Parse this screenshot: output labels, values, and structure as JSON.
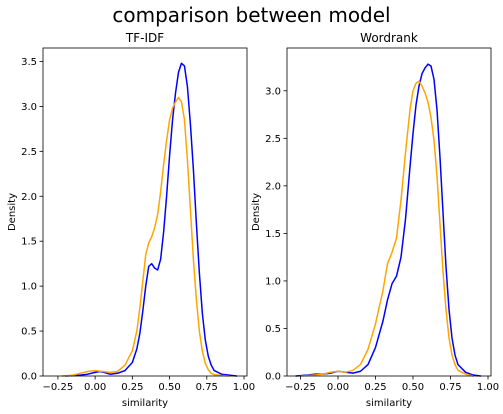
{
  "figure": {
    "suptitle": "comparison between model"
  },
  "colors": {
    "series_a": "#0000ff",
    "series_b": "#ffa500"
  },
  "chart_data": [
    {
      "type": "line",
      "subtype": "kde",
      "title": "TF-IDF",
      "xlabel": "similarity",
      "ylabel": "Density",
      "xlim": [
        -0.35,
        1.02
      ],
      "ylim": [
        0,
        3.65
      ],
      "xticks": [
        -0.25,
        0.0,
        0.25,
        0.5,
        0.75,
        1.0
      ],
      "xtick_labels": [
        "−0.25",
        "0.00",
        "0.25",
        "0.50",
        "0.75",
        "1.00"
      ],
      "yticks": [
        0.0,
        0.5,
        1.0,
        1.5,
        2.0,
        2.5,
        3.0,
        3.5
      ],
      "ytick_labels": [
        "0.0",
        "0.5",
        "1.0",
        "1.5",
        "2.0",
        "2.5",
        "3.0",
        "3.5"
      ],
      "series": [
        {
          "color": "#0000ff",
          "x": [
            -0.2,
            -0.1,
            -0.05,
            0.0,
            0.03,
            0.06,
            0.1,
            0.15,
            0.2,
            0.25,
            0.28,
            0.3,
            0.32,
            0.34,
            0.36,
            0.38,
            0.4,
            0.42,
            0.44,
            0.46,
            0.48,
            0.5,
            0.52,
            0.54,
            0.56,
            0.58,
            0.6,
            0.62,
            0.64,
            0.66,
            0.68,
            0.7,
            0.72,
            0.74,
            0.76,
            0.78,
            0.8,
            0.85,
            0.9,
            0.95
          ],
          "y": [
            0.0,
            0.01,
            0.02,
            0.04,
            0.05,
            0.04,
            0.02,
            0.03,
            0.06,
            0.15,
            0.3,
            0.47,
            0.72,
            1.0,
            1.22,
            1.25,
            1.2,
            1.18,
            1.3,
            1.6,
            2.0,
            2.45,
            2.85,
            3.15,
            3.38,
            3.48,
            3.45,
            3.22,
            2.8,
            2.3,
            1.7,
            1.15,
            0.7,
            0.4,
            0.22,
            0.12,
            0.06,
            0.02,
            0.01,
            0.0
          ]
        },
        {
          "color": "#ffa500",
          "x": [
            -0.22,
            -0.15,
            -0.1,
            -0.05,
            0.0,
            0.05,
            0.1,
            0.15,
            0.2,
            0.25,
            0.28,
            0.3,
            0.32,
            0.34,
            0.36,
            0.38,
            0.4,
            0.42,
            0.44,
            0.46,
            0.48,
            0.5,
            0.52,
            0.54,
            0.56,
            0.58,
            0.6,
            0.62,
            0.64,
            0.66,
            0.68,
            0.7,
            0.72,
            0.74,
            0.76,
            0.78,
            0.8,
            0.85,
            0.9
          ],
          "y": [
            0.0,
            0.01,
            0.03,
            0.05,
            0.06,
            0.05,
            0.04,
            0.05,
            0.12,
            0.28,
            0.5,
            0.75,
            1.05,
            1.35,
            1.48,
            1.55,
            1.65,
            1.8,
            2.05,
            2.35,
            2.62,
            2.85,
            2.98,
            3.05,
            3.1,
            3.05,
            2.85,
            2.4,
            1.85,
            1.3,
            0.85,
            0.5,
            0.28,
            0.14,
            0.07,
            0.03,
            0.015,
            0.005,
            0.0
          ]
        }
      ]
    },
    {
      "type": "line",
      "subtype": "kde",
      "title": "Wordrank",
      "xlabel": "similarity",
      "ylabel": "Density",
      "xlim": [
        -0.34,
        1.02
      ],
      "ylim": [
        0,
        3.45
      ],
      "xticks": [
        -0.25,
        0.0,
        0.25,
        0.5,
        0.75,
        1.0
      ],
      "xtick_labels": [
        "−0.25",
        "0.00",
        "0.25",
        "0.50",
        "0.75",
        "1.00"
      ],
      "yticks": [
        0.0,
        0.5,
        1.0,
        1.5,
        2.0,
        2.5,
        3.0
      ],
      "ytick_labels": [
        "0.0",
        "0.5",
        "1.0",
        "1.5",
        "2.0",
        "2.5",
        "3.0"
      ],
      "series": [
        {
          "color": "#0000ff",
          "x": [
            -0.28,
            -0.2,
            -0.15,
            -0.1,
            -0.05,
            0.0,
            0.05,
            0.1,
            0.15,
            0.2,
            0.25,
            0.3,
            0.33,
            0.36,
            0.39,
            0.42,
            0.45,
            0.48,
            0.5,
            0.52,
            0.54,
            0.56,
            0.58,
            0.6,
            0.62,
            0.64,
            0.66,
            0.68,
            0.7,
            0.72,
            0.74,
            0.76,
            0.78,
            0.8,
            0.85,
            0.9,
            0.95
          ],
          "y": [
            0.0,
            0.01,
            0.02,
            0.02,
            0.03,
            0.05,
            0.04,
            0.03,
            0.05,
            0.12,
            0.3,
            0.58,
            0.8,
            0.97,
            1.05,
            1.25,
            1.65,
            2.2,
            2.55,
            2.85,
            3.05,
            3.18,
            3.24,
            3.28,
            3.26,
            3.12,
            2.8,
            2.3,
            1.72,
            1.15,
            0.7,
            0.4,
            0.22,
            0.12,
            0.04,
            0.01,
            0.0
          ]
        },
        {
          "color": "#ffa500",
          "x": [
            -0.25,
            -0.15,
            -0.1,
            -0.05,
            0.0,
            0.05,
            0.1,
            0.15,
            0.2,
            0.25,
            0.3,
            0.33,
            0.36,
            0.39,
            0.42,
            0.45,
            0.48,
            0.5,
            0.52,
            0.54,
            0.56,
            0.58,
            0.6,
            0.62,
            0.64,
            0.66,
            0.68,
            0.7,
            0.72,
            0.74,
            0.76,
            0.78,
            0.8,
            0.85,
            0.9
          ],
          "y": [
            0.0,
            0.01,
            0.02,
            0.04,
            0.05,
            0.04,
            0.06,
            0.12,
            0.28,
            0.55,
            0.9,
            1.18,
            1.3,
            1.45,
            1.85,
            2.35,
            2.8,
            3.0,
            3.08,
            3.1,
            3.05,
            2.98,
            2.88,
            2.72,
            2.48,
            2.1,
            1.6,
            1.1,
            0.7,
            0.4,
            0.22,
            0.12,
            0.06,
            0.02,
            0.0
          ]
        }
      ]
    }
  ]
}
